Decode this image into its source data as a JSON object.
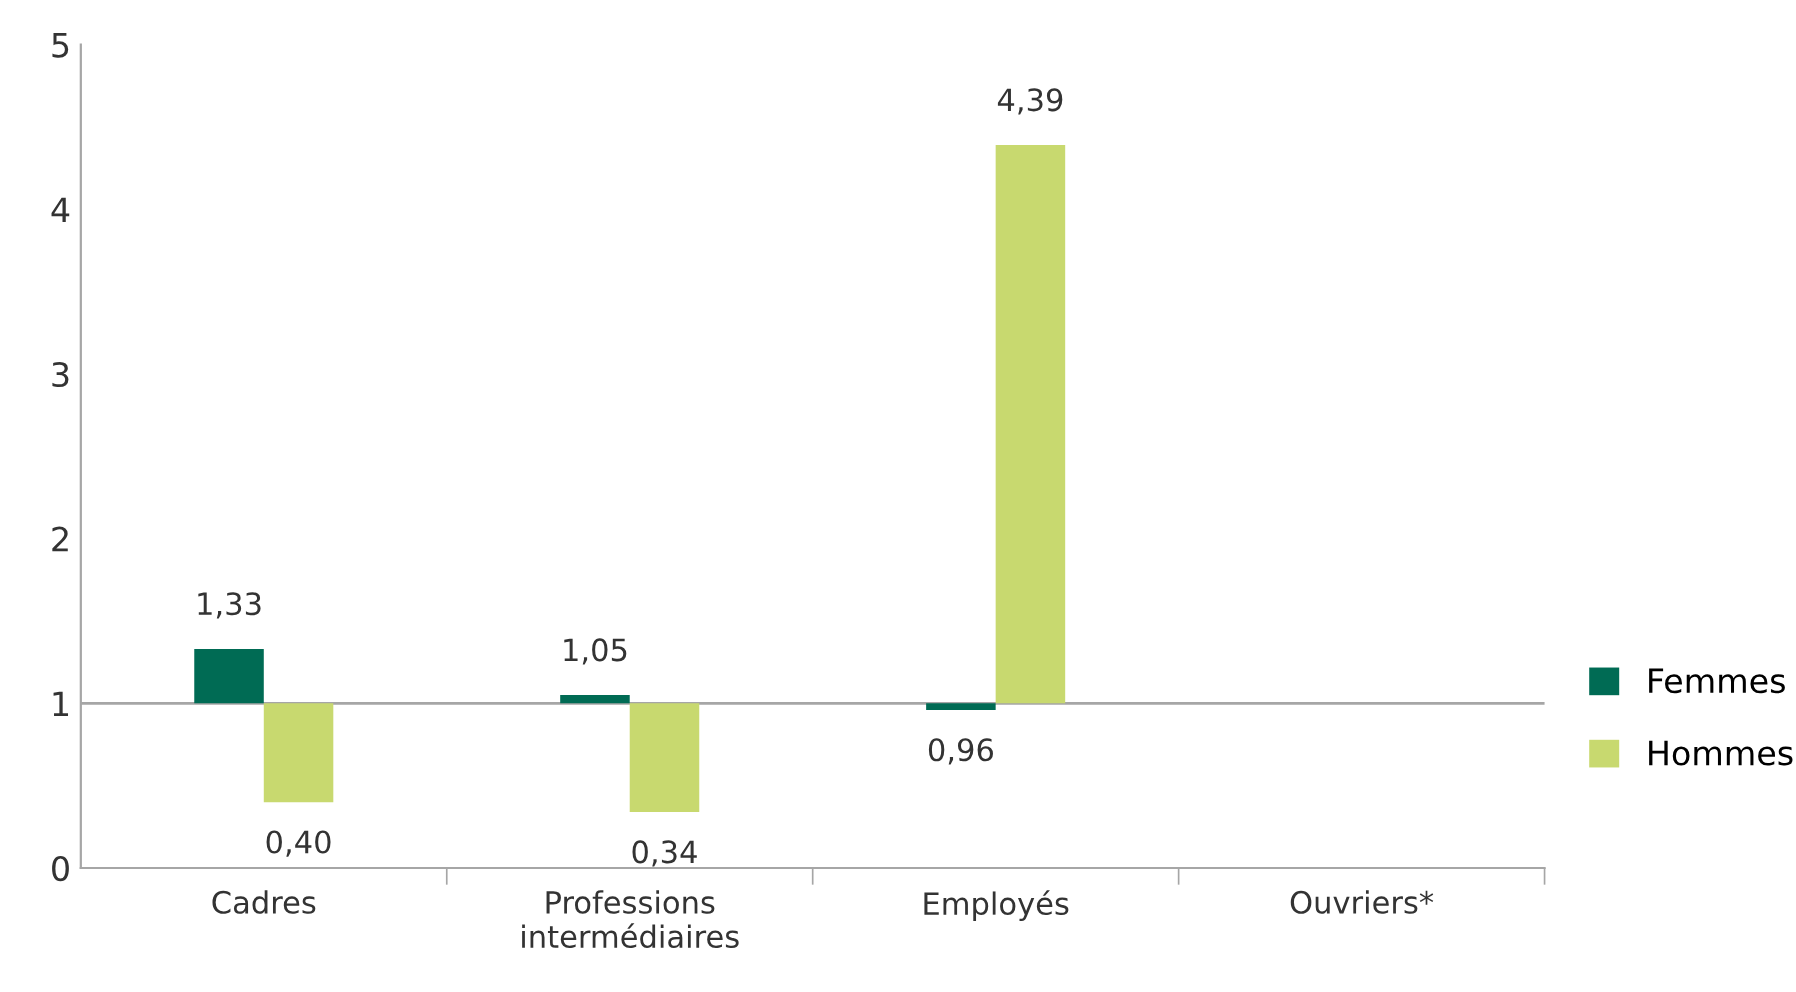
{
  "chart_data": {
    "type": "bar",
    "categories": [
      "Cadres",
      "Professions\nintermédiaires",
      "Employés",
      "Ouvriers*"
    ],
    "series": [
      {
        "name": "Femmes",
        "color": "#006b54",
        "values": [
          0.33,
          0.05,
          -0.04,
          null
        ],
        "base": [
          1,
          1,
          1,
          null
        ],
        "value_labels": [
          "1,33",
          "1,05",
          "0,96",
          null
        ]
      },
      {
        "name": "Hommes",
        "color": "#c8d96f",
        "values": [
          -0.6,
          -0.66,
          3.39,
          null
        ],
        "base": [
          1,
          1,
          1,
          null
        ],
        "value_labels": [
          "0,40",
          "0,34",
          "4,39",
          null
        ]
      }
    ],
    "ylim": [
      0,
      5
    ],
    "yticks": [
      0,
      1,
      2,
      3,
      4,
      5
    ],
    "ref_lines": [
      {
        "axis": "y",
        "value": 1,
        "color": "#a6a6a6"
      }
    ],
    "grid": false,
    "legend": "right"
  }
}
